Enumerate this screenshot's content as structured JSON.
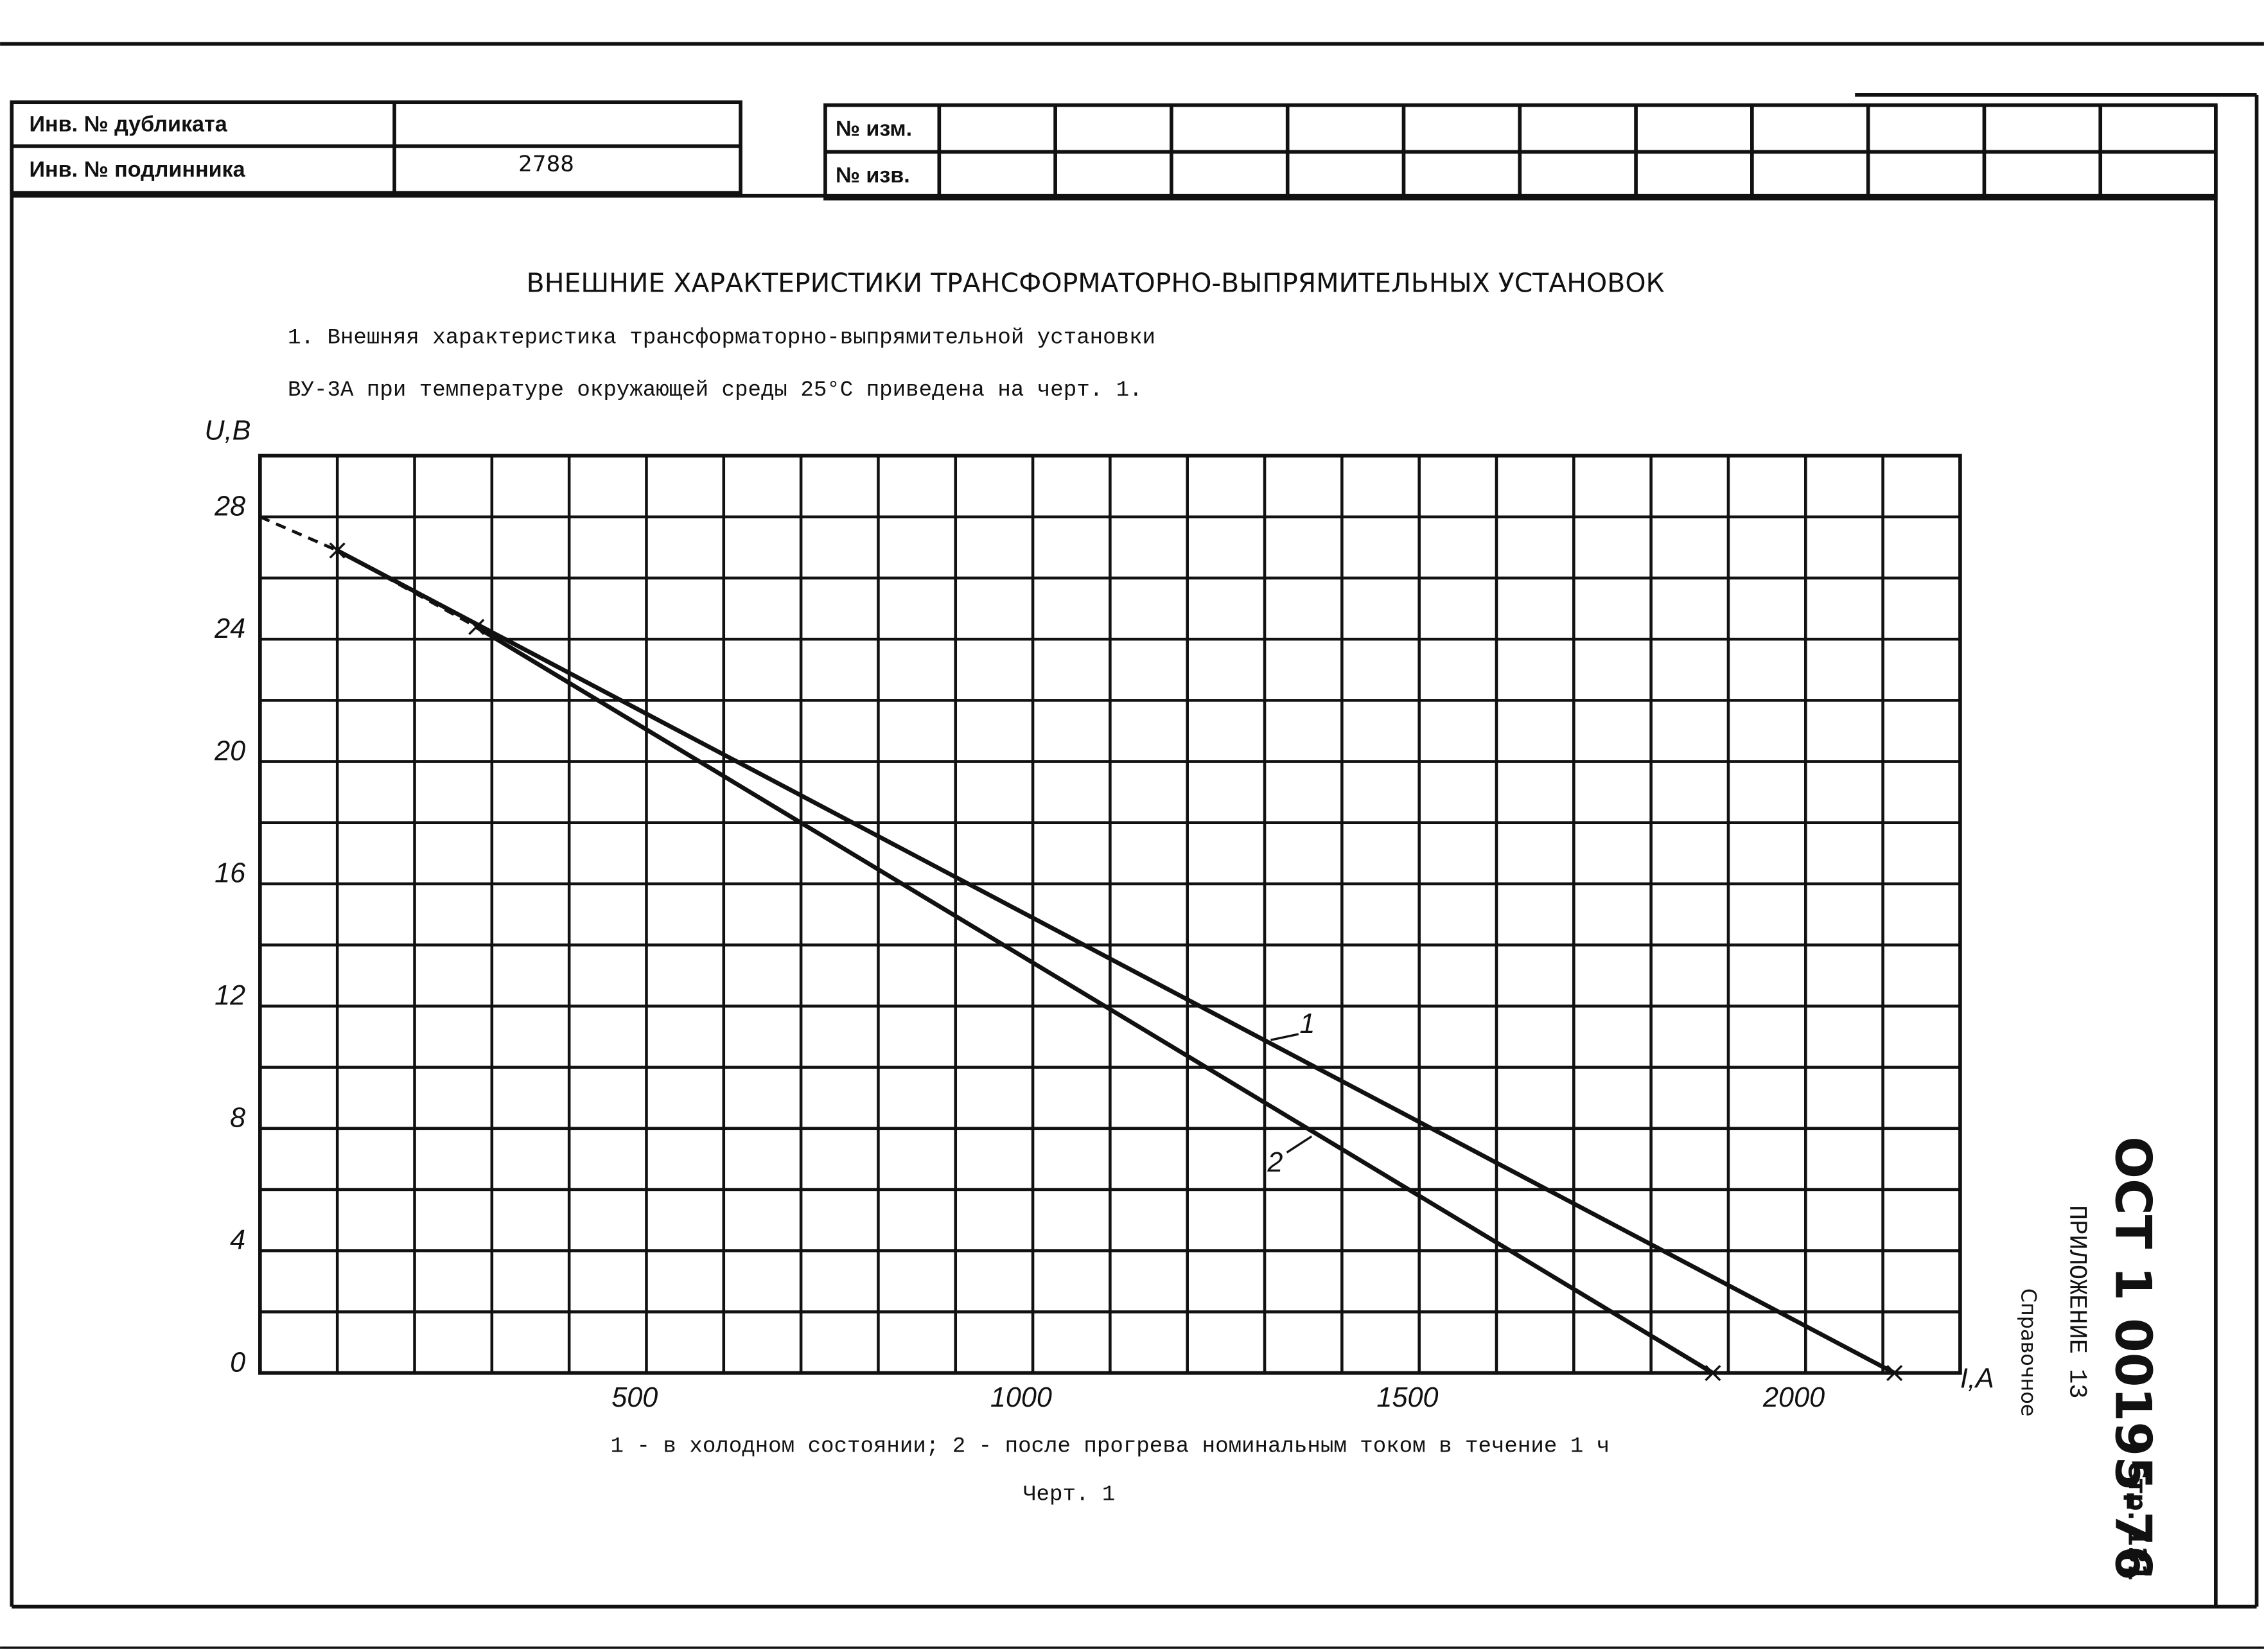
{
  "header": {
    "rows": [
      [
        "Инв. № дубликата"
      ],
      [
        "Инв. № подлинника",
        "2788"
      ]
    ],
    "changes": [
      "№ изм.",
      "№ изв."
    ]
  },
  "title": "ВНЕШНИЕ ХАРАКТЕРИСТИКИ ТРАНСФОРМАТОРНО-ВЫПРЯМИТЕЛЬНЫХ УСТАНОВОК",
  "paragraph": [
    "1. Внешняя характеристика трансформаторно-выпрямительной установки",
    "ВУ-3А при температуре окружающей среды 25°С приведена на черт. 1."
  ],
  "chart_data": {
    "type": "line",
    "xlabel": "I,A",
    "ylabel": "U,B",
    "xlim": [
      0,
      2200
    ],
    "ylim": [
      0,
      30
    ],
    "xticks": [
      500,
      1000,
      1500,
      2000
    ],
    "yticks": [
      0,
      4,
      8,
      12,
      16,
      20,
      24,
      28
    ],
    "xgrid": [
      0,
      100,
      200,
      300,
      400,
      500,
      600,
      700,
      800,
      900,
      1000,
      1100,
      1200,
      1300,
      1400,
      1500,
      1600,
      1700,
      1800,
      1900,
      2000,
      2100,
      2200
    ],
    "ygrid": [
      0,
      2,
      4,
      6,
      8,
      10,
      12,
      14,
      16,
      18,
      20,
      22,
      24,
      26,
      28,
      30
    ],
    "grid": true,
    "series": [
      {
        "name": "1",
        "color": "#111111",
        "x": [
          0,
          100,
          2115
        ],
        "values": [
          28,
          26.9,
          0
        ],
        "dashed_until": 100
      },
      {
        "name": "2",
        "color": "#111111",
        "x": [
          0,
          100,
          280,
          1880
        ],
        "values": [
          28,
          26.9,
          24.4,
          0
        ],
        "dashed_until": 280
      }
    ],
    "caption": "1 - в холодном состоянии; 2 - после прогрева номинальным током в течение 1 ч",
    "figure": "Черт. 1"
  },
  "side": {
    "standard": "ОСТ 1 00195-76",
    "page": "Стр. 131",
    "appendix": "ПРИЛОЖЕНИЕ 13",
    "status": "Справочное"
  }
}
